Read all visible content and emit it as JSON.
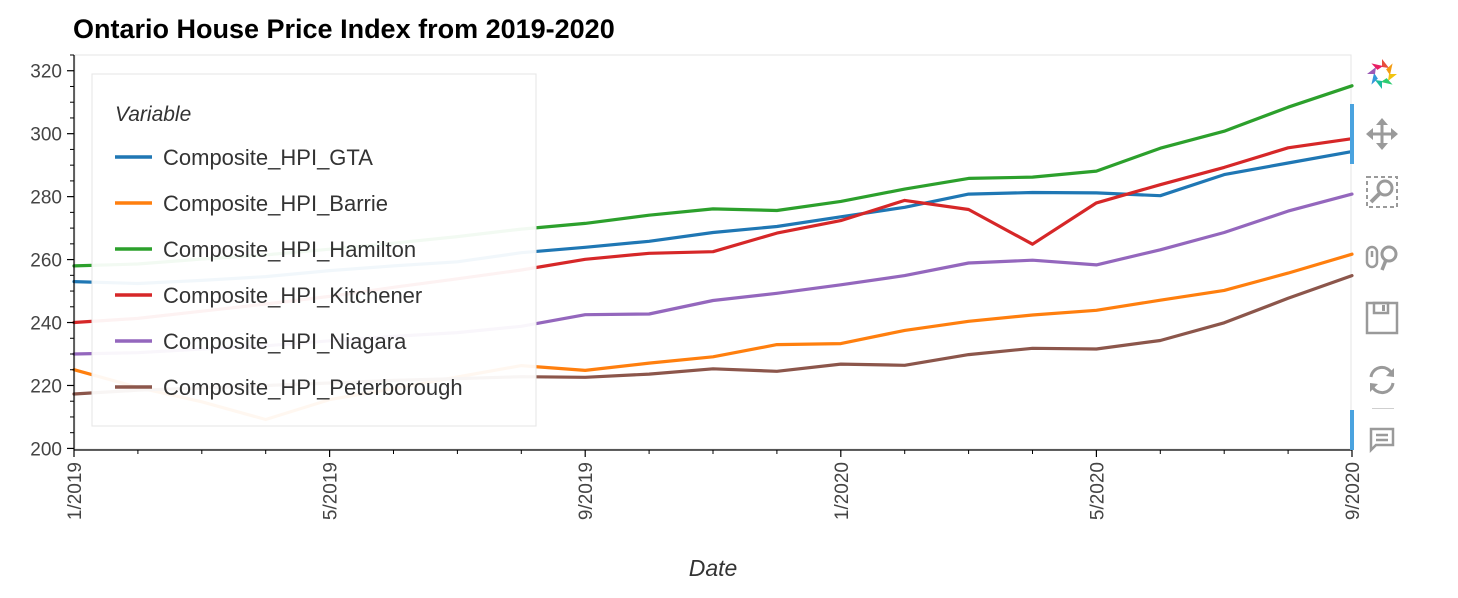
{
  "chart_data": {
    "type": "line",
    "title": "Ontario House Price Index from 2019-2020",
    "xlabel": "Date",
    "ylabel": "",
    "x": [
      "2019-01",
      "2019-02",
      "2019-03",
      "2019-04",
      "2019-05",
      "2019-06",
      "2019-07",
      "2019-08",
      "2019-09",
      "2019-10",
      "2019-11",
      "2019-12",
      "2020-01",
      "2020-02",
      "2020-03",
      "2020-04",
      "2020-05",
      "2020-06",
      "2020-07",
      "2020-08",
      "2020-09"
    ],
    "xticks": [
      "1/2019",
      "5/2019",
      "9/2019",
      "1/2020",
      "5/2020",
      "9/2020"
    ],
    "yticks": [
      "200",
      "220",
      "240",
      "260",
      "280",
      "300",
      "320"
    ],
    "ylim": [
      199.5,
      325
    ],
    "grid": false,
    "legend": {
      "title": "Variable",
      "placement": "top-left"
    },
    "series": [
      {
        "name": "Composite_HPI_GTA",
        "color": "#1f77b4",
        "values": [
          253.0,
          252.4,
          253.4,
          254.6,
          256.5,
          258.0,
          259.3,
          262.2,
          263.9,
          265.8,
          268.6,
          270.5,
          273.6,
          276.6,
          280.8,
          281.3,
          281.2,
          280.3,
          287.0,
          290.7,
          294.3
        ]
      },
      {
        "name": "Composite_HPI_Barrie",
        "color": "#ff7f0e",
        "values": [
          225.0,
          219.4,
          214.8,
          209.2,
          215.5,
          219.0,
          222.7,
          226.3,
          224.8,
          227.1,
          229.1,
          233.0,
          233.3,
          237.5,
          240.4,
          242.4,
          243.9,
          247.1,
          250.2,
          255.7,
          261.7
        ]
      },
      {
        "name": "Composite_HPI_Hamilton",
        "color": "#2ca02c",
        "values": [
          258.0,
          258.6,
          260.2,
          261.5,
          263.3,
          265.2,
          267.3,
          269.7,
          271.5,
          274.1,
          276.1,
          275.6,
          278.5,
          282.4,
          285.8,
          286.2,
          288.1,
          295.4,
          300.8,
          308.4,
          315.2
        ]
      },
      {
        "name": "Composite_HPI_Kitchener",
        "color": "#d62728",
        "values": [
          240.0,
          241.3,
          243.6,
          245.9,
          248.3,
          251.2,
          253.9,
          256.7,
          260.1,
          262.0,
          262.5,
          268.4,
          272.4,
          278.8,
          275.9,
          264.9,
          278.0,
          283.8,
          289.3,
          295.5,
          298.4
        ]
      },
      {
        "name": "Composite_HPI_Niagara",
        "color": "#9467bd",
        "values": [
          230.0,
          230.4,
          231.6,
          232.6,
          234.2,
          235.6,
          236.8,
          238.8,
          242.5,
          242.7,
          247.0,
          249.3,
          252.0,
          254.9,
          258.9,
          259.8,
          258.3,
          263.1,
          268.6,
          275.4,
          280.8
        ]
      },
      {
        "name": "Composite_HPI_Peterborough",
        "color": "#8c564b",
        "values": [
          217.3,
          218.5,
          219.2,
          220.0,
          220.8,
          221.6,
          222.2,
          222.8,
          222.6,
          223.6,
          225.3,
          224.5,
          226.8,
          226.4,
          229.8,
          231.8,
          231.6,
          234.3,
          239.9,
          247.7,
          254.9
        ]
      }
    ]
  },
  "toolbar": {
    "icons": [
      "bokeh-logo-icon",
      "pan-icon",
      "box-zoom-icon",
      "wheel-zoom-icon",
      "save-icon",
      "reset-icon",
      "hover-icon"
    ]
  }
}
